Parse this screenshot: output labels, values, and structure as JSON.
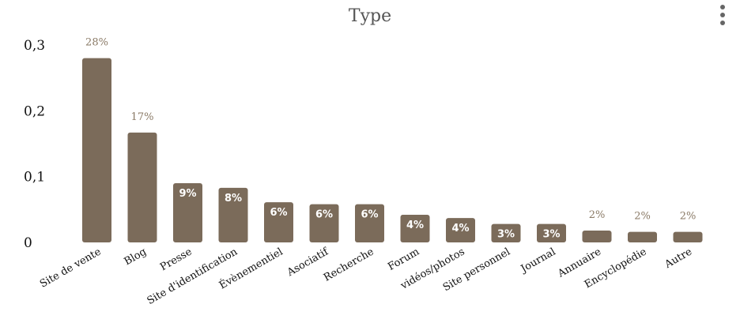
{
  "chart_data": {
    "type": "bar",
    "title": "Type",
    "xlabel": "",
    "ylabel": "",
    "ylim": [
      0,
      0.3
    ],
    "yticks": [
      "0",
      "0,1",
      "0,2",
      "0,3"
    ],
    "ytick_values": [
      0,
      0.1,
      0.2,
      0.3
    ],
    "grid": false,
    "categories": [
      "Site de vente",
      "Blog",
      "Presse",
      "Site d'identification",
      "Évènementiel",
      "Asociatif",
      "Recherche",
      "Forum",
      "vidéos/photos",
      "Site personnel",
      "Journal",
      "Annuaire",
      "Encyclopédie",
      "Autre"
    ],
    "values": [
      0.28,
      0.167,
      0.09,
      0.083,
      0.061,
      0.058,
      0.058,
      0.042,
      0.037,
      0.028,
      0.028,
      0.018,
      0.016,
      0.016
    ],
    "data_labels": [
      "28%",
      "17%",
      "9%",
      "8%",
      "6%",
      "6%",
      "6%",
      "4%",
      "4%",
      "3%",
      "3%",
      "2%",
      "2%",
      "2%"
    ],
    "bar_color": "#7b6b5a",
    "label_outside_color": "#8a7a66",
    "label_inside_color": "#ffffff"
  },
  "menu": {
    "icon": "more-vertical-icon"
  }
}
